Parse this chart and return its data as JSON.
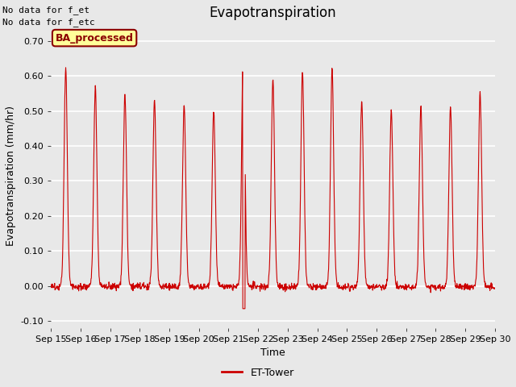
{
  "title": "Evapotranspiration",
  "ylabel": "Evapotranspiration (mm/hr)",
  "xlabel": "Time",
  "ylim": [
    -0.12,
    0.75
  ],
  "yticks": [
    -0.1,
    0.0,
    0.1,
    0.2,
    0.3,
    0.4,
    0.5,
    0.6,
    0.7
  ],
  "background_color": "#e8e8e8",
  "line_color": "#cc0000",
  "legend_label": "ET-Tower",
  "text_annotations": [
    "No data for f_et",
    "No data for f_etc"
  ],
  "ba_processed_label": "BA_processed",
  "x_tick_labels": [
    "Sep 15",
    "Sep 16",
    "Sep 17",
    "Sep 18",
    "Sep 19",
    "Sep 20",
    "Sep 21",
    "Sep 22",
    "Sep 23",
    "Sep 24",
    "Sep 25",
    "Sep 26",
    "Sep 27",
    "Sep 28",
    "Sep 29",
    "Sep 30"
  ],
  "title_fontsize": 12,
  "axis_fontsize": 9,
  "tick_fontsize": 8,
  "day_peaks": [
    0.62,
    0.57,
    0.55,
    0.53,
    0.52,
    0.5,
    0.69,
    0.59,
    0.61,
    0.62,
    0.53,
    0.5,
    0.51,
    0.51,
    0.55
  ],
  "dip_day": 6,
  "dip_value": -0.065
}
